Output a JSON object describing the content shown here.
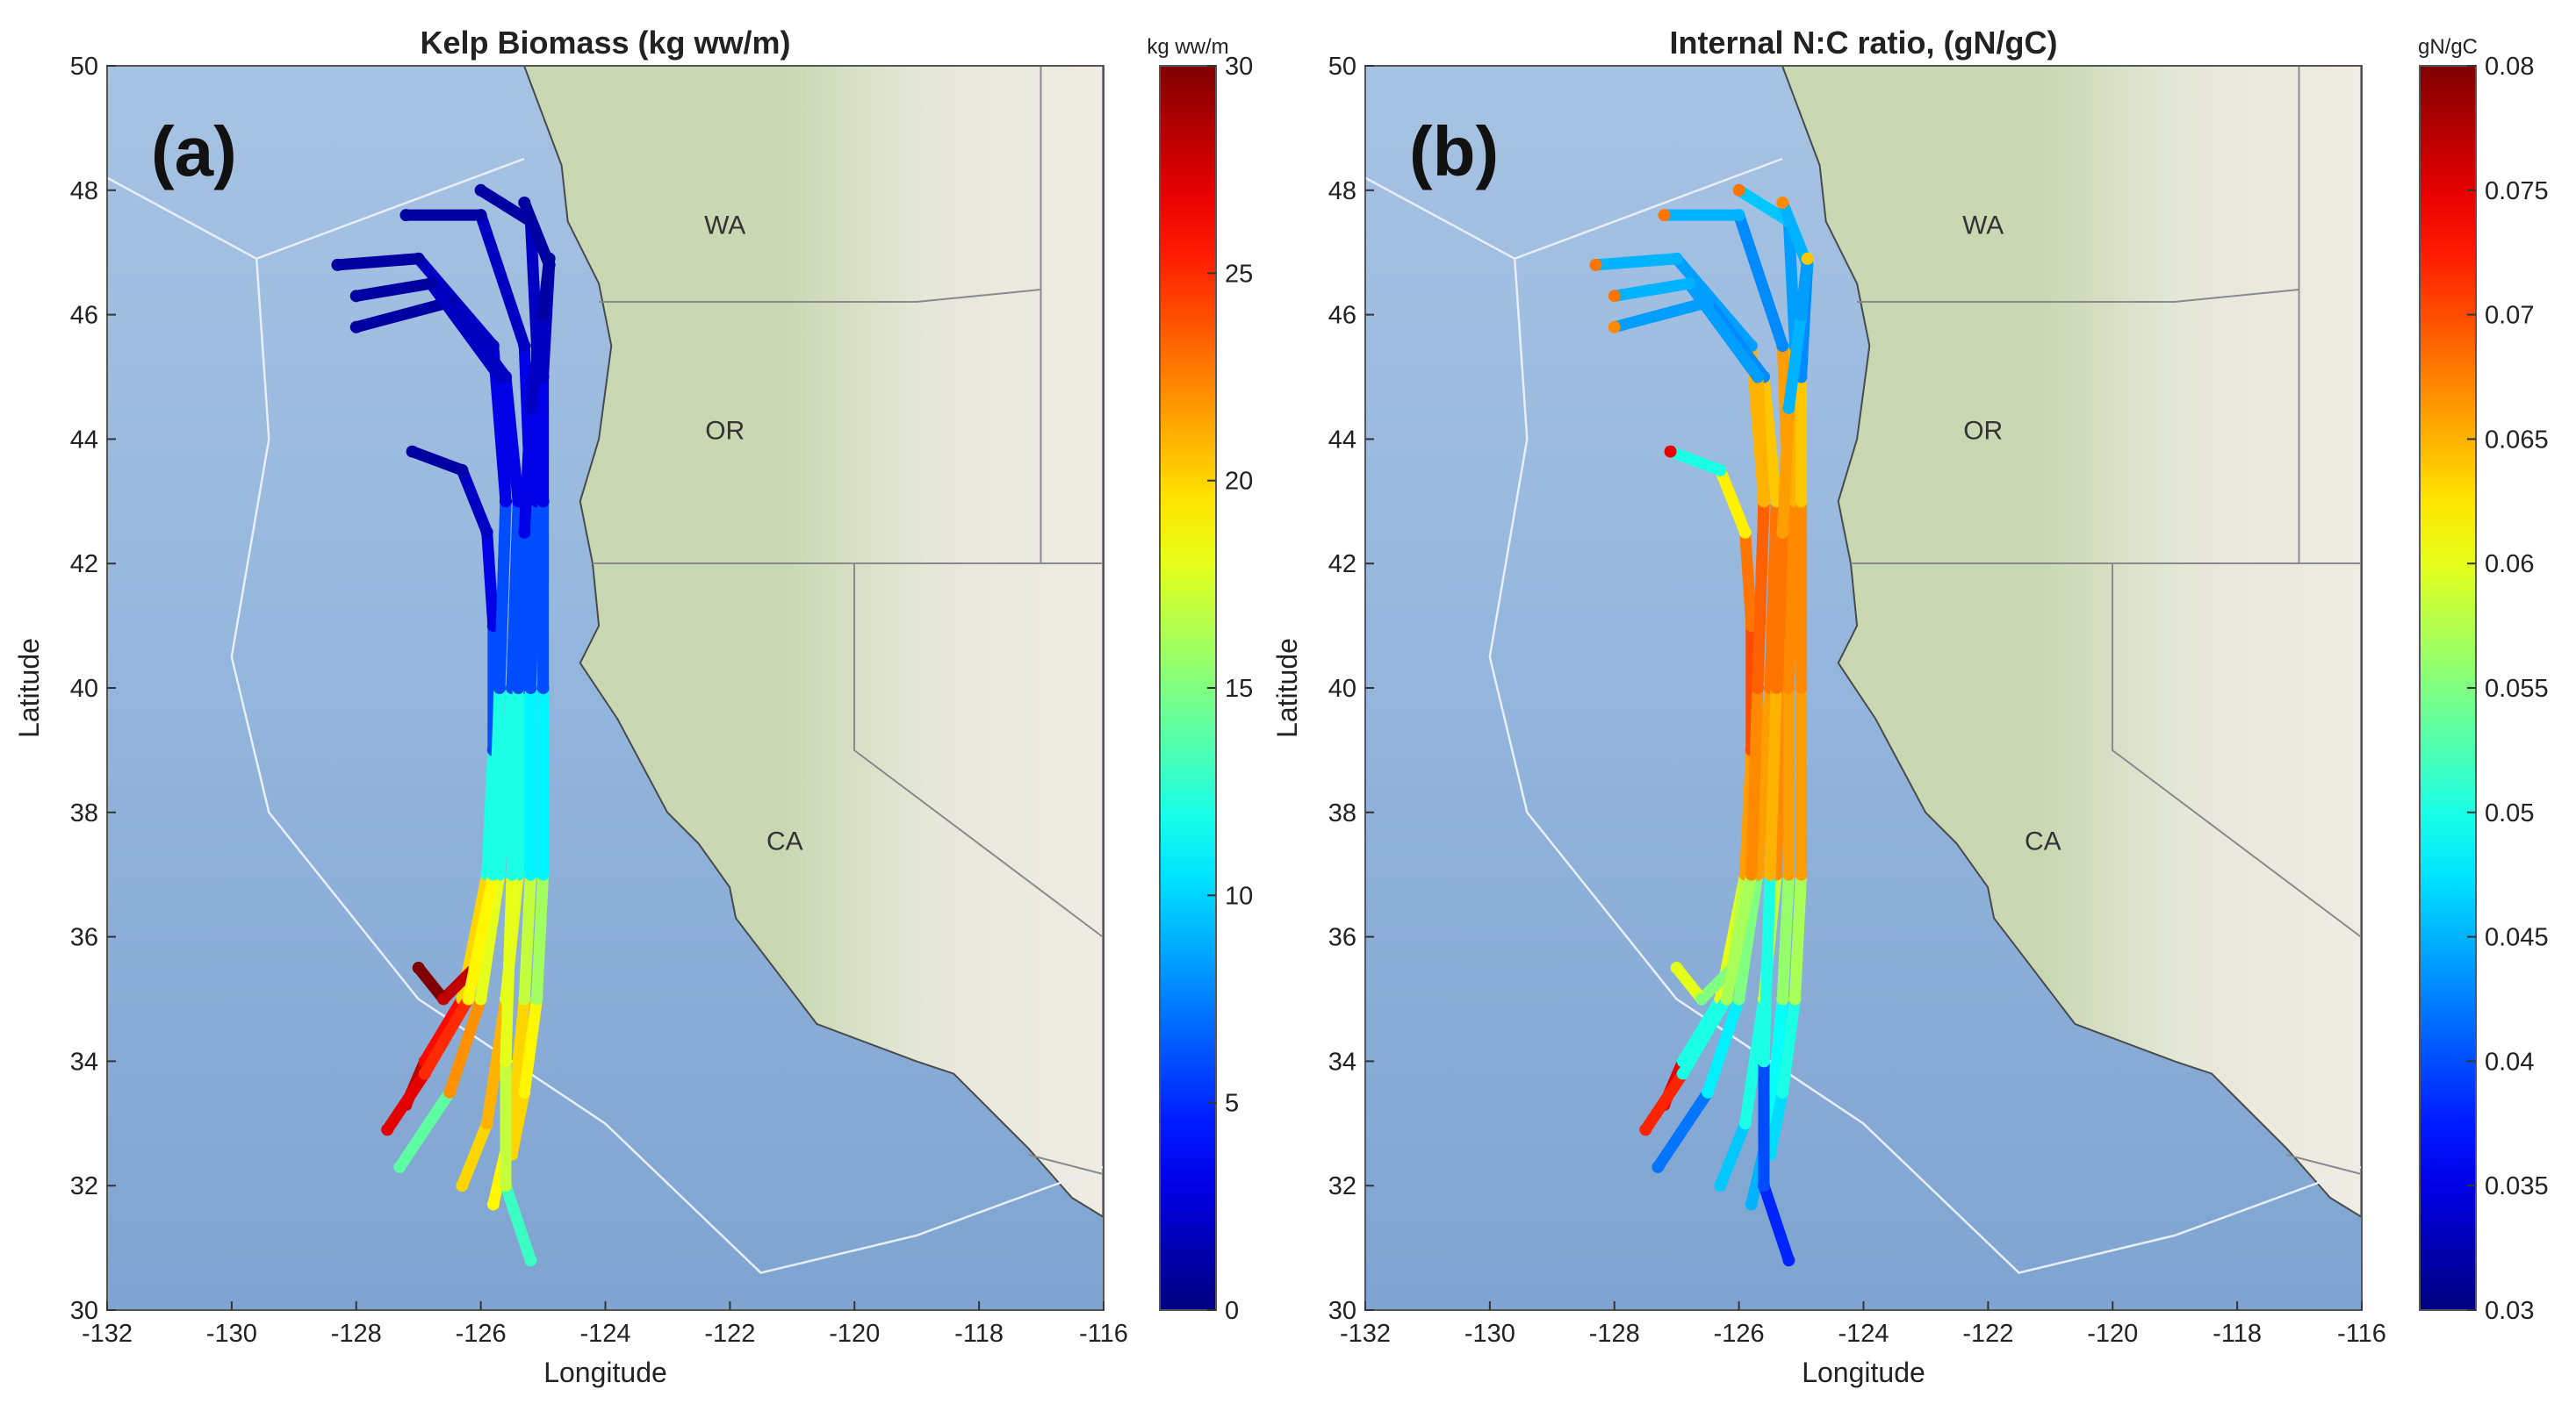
{
  "chart_data": [
    {
      "type": "trajectory-map",
      "title": "Kelp Biomass (kg ww/m)",
      "panel_label": "(a)",
      "xlabel": "Longitude",
      "ylabel": "Latitude",
      "xlim": [
        -132,
        -116
      ],
      "xticks": [
        -132,
        -130,
        -128,
        -126,
        -124,
        -122,
        -120,
        -118,
        -116
      ],
      "ylim": [
        30,
        50
      ],
      "yticks": [
        30,
        32,
        34,
        36,
        38,
        40,
        42,
        44,
        46,
        48,
        50
      ],
      "place_labels": [
        "WA",
        "OR",
        "CA"
      ],
      "colorbar": {
        "label": "kg ww/m",
        "colormap": "jet",
        "lim": [
          0,
          30
        ],
        "ticks": [
          0,
          5,
          10,
          15,
          20,
          25,
          30
        ]
      },
      "tracks": [
        {
          "x": [
            -128.3,
            -127.0,
            -125.8,
            -125.6,
            -125.7,
            -125.9,
            -126.3,
            -126.9,
            -127.2
          ],
          "y": [
            46.8,
            46.9,
            45.5,
            43.0,
            40.0,
            37.0,
            35.0,
            34.0,
            33.3
          ],
          "values": [
            1,
            1,
            2,
            3,
            6,
            12,
            20,
            26,
            28
          ]
        },
        {
          "x": [
            -128.0,
            -126.5,
            -125.6,
            -125.4,
            -125.5,
            -125.7,
            -126.0,
            -126.5,
            -127.3
          ],
          "y": [
            45.8,
            46.2,
            45.0,
            43.0,
            40.0,
            37.0,
            35.0,
            33.5,
            32.3
          ],
          "values": [
            1,
            1,
            2,
            3,
            6,
            12,
            18,
            22,
            14
          ]
        },
        {
          "x": [
            -127.2,
            -126.0,
            -125.3,
            -125.2,
            -125.3,
            -125.4,
            -125.6,
            -125.9,
            -126.3
          ],
          "y": [
            47.6,
            47.6,
            45.5,
            43.0,
            40.0,
            37.0,
            35.0,
            33.0,
            32.0
          ],
          "values": [
            1,
            1,
            2,
            3,
            6,
            12,
            18,
            21,
            20
          ]
        },
        {
          "x": [
            -126.0,
            -125.2,
            -125.1,
            -125.1,
            -125.2,
            -125.2,
            -125.3,
            -125.5,
            -125.8
          ],
          "y": [
            48.0,
            47.5,
            45.5,
            43.0,
            40.0,
            37.0,
            35.0,
            33.0,
            31.7
          ],
          "values": [
            1,
            1,
            2,
            3,
            6,
            11,
            17,
            20,
            19
          ]
        },
        {
          "x": [
            -125.3,
            -124.9,
            -125.0,
            -125.0,
            -125.0,
            -125.0,
            -125.1,
            -125.3,
            -125.5
          ],
          "y": [
            47.8,
            46.8,
            45.0,
            43.0,
            40.0,
            37.0,
            35.0,
            33.5,
            32.5
          ],
          "values": [
            1,
            1,
            2,
            3,
            6,
            11,
            16,
            19,
            20
          ]
        },
        {
          "x": [
            -127.1,
            -126.3,
            -125.9,
            -125.8,
            -125.8,
            -125.9,
            -126.1,
            -126.6,
            -127.0
          ],
          "y": [
            43.8,
            43.5,
            42.5,
            41.0,
            39.0,
            37.0,
            35.5,
            35.0,
            35.5
          ],
          "values": [
            1,
            1,
            2,
            3,
            6,
            12,
            20,
            28,
            30
          ]
        },
        {
          "x": [
            -124.9,
            -125.0,
            -125.2,
            -125.3,
            -125.4,
            -125.5,
            -125.6,
            -125.6,
            -125.2
          ],
          "y": [
            46.9,
            46.0,
            44.5,
            42.5,
            40.0,
            37.0,
            34.0,
            32.0,
            30.8
          ],
          "values": [
            1,
            1,
            2,
            3,
            6,
            12,
            18,
            17,
            13
          ]
        },
        {
          "x": [
            -128.0,
            -126.8,
            -125.7,
            -125.6,
            -125.7,
            -125.8,
            -126.2,
            -126.9,
            -127.5
          ],
          "y": [
            46.3,
            46.5,
            45.0,
            43.0,
            40.0,
            37.0,
            35.0,
            33.8,
            32.9
          ],
          "values": [
            1,
            1,
            2,
            3,
            6,
            12,
            19,
            25,
            27
          ]
        }
      ]
    },
    {
      "type": "trajectory-map",
      "title": "Internal N:C ratio, (gN/gC)",
      "panel_label": "(b)",
      "xlabel": "Longitude",
      "ylabel": "Latitude",
      "xlim": [
        -132,
        -116
      ],
      "xticks": [
        -132,
        -130,
        -128,
        -126,
        -124,
        -122,
        -120,
        -118,
        -116
      ],
      "ylim": [
        30,
        50
      ],
      "yticks": [
        30,
        32,
        34,
        36,
        38,
        40,
        42,
        44,
        46,
        48,
        50
      ],
      "place_labels": [
        "WA",
        "OR",
        "CA"
      ],
      "colorbar": {
        "label": "gN/gC",
        "colormap": "jet",
        "lim": [
          0.03,
          0.08
        ],
        "ticks": [
          0.03,
          0.035,
          0.04,
          0.045,
          0.05,
          0.055,
          0.06,
          0.065,
          0.07,
          0.075,
          0.08
        ]
      },
      "tracks": [
        {
          "x": [
            -128.3,
            -127.0,
            -125.8,
            -125.6,
            -125.7,
            -125.9,
            -126.3,
            -126.9,
            -127.2
          ],
          "y": [
            46.8,
            46.9,
            45.5,
            43.0,
            40.0,
            37.0,
            35.0,
            34.0,
            33.3
          ],
          "values": [
            0.068,
            0.045,
            0.044,
            0.065,
            0.069,
            0.068,
            0.06,
            0.05,
            0.075
          ]
        },
        {
          "x": [
            -128.0,
            -126.5,
            -125.6,
            -125.4,
            -125.5,
            -125.7,
            -126.0,
            -126.5,
            -127.3
          ],
          "y": [
            45.8,
            46.2,
            45.0,
            43.0,
            40.0,
            37.0,
            35.0,
            33.5,
            32.3
          ],
          "values": [
            0.067,
            0.044,
            0.043,
            0.064,
            0.068,
            0.066,
            0.055,
            0.048,
            0.042
          ]
        },
        {
          "x": [
            -127.2,
            -126.0,
            -125.3,
            -125.2,
            -125.3,
            -125.4,
            -125.6,
            -125.9,
            -126.3
          ],
          "y": [
            47.6,
            47.6,
            45.5,
            43.0,
            40.0,
            37.0,
            35.0,
            33.0,
            32.0
          ],
          "values": [
            0.068,
            0.045,
            0.043,
            0.066,
            0.068,
            0.067,
            0.058,
            0.05,
            0.046
          ]
        },
        {
          "x": [
            -126.0,
            -125.2,
            -125.1,
            -125.1,
            -125.2,
            -125.2,
            -125.3,
            -125.5,
            -125.8
          ],
          "y": [
            48.0,
            47.5,
            45.5,
            43.0,
            40.0,
            37.0,
            35.0,
            33.0,
            31.7
          ],
          "values": [
            0.068,
            0.046,
            0.044,
            0.065,
            0.067,
            0.066,
            0.056,
            0.049,
            0.045
          ]
        },
        {
          "x": [
            -125.3,
            -124.9,
            -125.0,
            -125.0,
            -125.0,
            -125.0,
            -125.1,
            -125.3,
            -125.5
          ],
          "y": [
            47.8,
            46.8,
            45.0,
            43.0,
            40.0,
            37.0,
            35.0,
            33.5,
            32.5
          ],
          "values": [
            0.067,
            0.045,
            0.043,
            0.064,
            0.067,
            0.066,
            0.057,
            0.05,
            0.047
          ]
        },
        {
          "x": [
            -127.1,
            -126.3,
            -125.9,
            -125.8,
            -125.8,
            -125.9,
            -126.1,
            -126.6,
            -127.0
          ],
          "y": [
            43.8,
            43.5,
            42.5,
            41.0,
            39.0,
            37.0,
            35.5,
            35.0,
            35.5
          ],
          "values": [
            0.075,
            0.05,
            0.062,
            0.068,
            0.07,
            0.066,
            0.058,
            0.055,
            0.06
          ]
        },
        {
          "x": [
            -124.9,
            -125.0,
            -125.2,
            -125.3,
            -125.4,
            -125.5,
            -125.6,
            -125.6,
            -125.2
          ],
          "y": [
            46.9,
            46.0,
            44.5,
            42.5,
            40.0,
            37.0,
            34.0,
            32.0,
            30.8
          ],
          "values": [
            0.064,
            0.044,
            0.045,
            0.066,
            0.068,
            0.065,
            0.05,
            0.04,
            0.038
          ]
        },
        {
          "x": [
            -128.0,
            -126.8,
            -125.7,
            -125.6,
            -125.7,
            -125.8,
            -126.2,
            -126.9,
            -127.5
          ],
          "y": [
            46.3,
            46.5,
            45.0,
            43.0,
            40.0,
            37.0,
            35.0,
            33.8,
            32.9
          ],
          "values": [
            0.068,
            0.045,
            0.044,
            0.065,
            0.069,
            0.067,
            0.057,
            0.05,
            0.072
          ]
        }
      ]
    }
  ]
}
